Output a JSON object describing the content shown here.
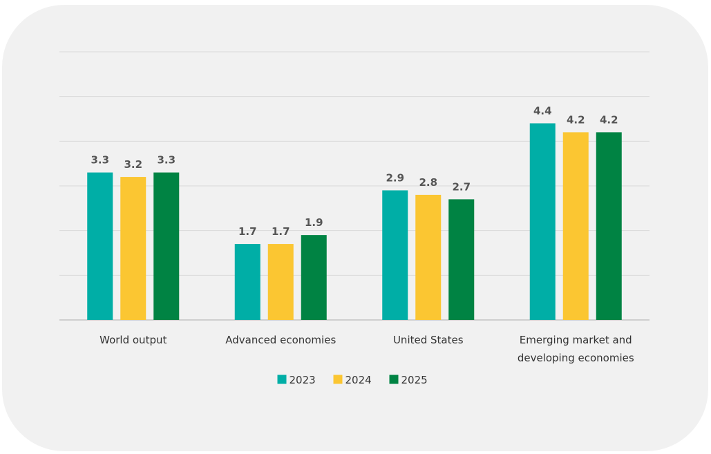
{
  "chart_data": {
    "type": "bar",
    "categories": [
      [
        "World output"
      ],
      [
        "Advanced economies"
      ],
      [
        "United States"
      ],
      [
        "Emerging market and",
        "developing economies"
      ]
    ],
    "series": [
      {
        "name": "2023",
        "color": "#00aea6",
        "values": [
          3.3,
          1.7,
          2.9,
          4.4
        ]
      },
      {
        "name": "2024",
        "color": "#fbc632",
        "values": [
          3.2,
          1.7,
          2.8,
          4.2
        ]
      },
      {
        "name": "2025",
        "color": "#008343",
        "values": [
          3.3,
          1.9,
          2.7,
          4.2
        ]
      }
    ],
    "ylim": [
      0,
      6
    ],
    "gridlines": [
      0,
      1,
      2,
      3,
      4,
      5,
      6
    ],
    "grid": true,
    "legend_position": "bottom-center"
  }
}
